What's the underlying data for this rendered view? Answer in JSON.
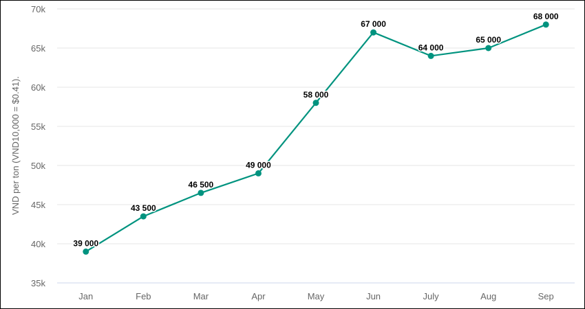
{
  "chart_data": {
    "type": "line",
    "title": "",
    "xlabel": "",
    "ylabel": "VND per ton (VND10,000 = $0.41).",
    "categories": [
      "Jan",
      "Feb",
      "Mar",
      "Apr",
      "May",
      "Jun",
      "July",
      "Aug",
      "Sep"
    ],
    "series": [
      {
        "values": [
          39000,
          43500,
          46500,
          49000,
          58000,
          67000,
          64000,
          65000,
          68000
        ],
        "data_labels": [
          "39 000",
          "43 500",
          "46 500",
          "49 000",
          "58 000",
          "67 000",
          "64 000",
          "65 000",
          "68 000"
        ],
        "color": "#00937f"
      }
    ],
    "ylim": [
      35000,
      70000
    ],
    "yticks": [
      35000,
      40000,
      45000,
      50000,
      55000,
      60000,
      65000,
      70000
    ],
    "ytick_labels": [
      "35k",
      "40k",
      "45k",
      "50k",
      "55k",
      "60k",
      "65k",
      "70k"
    ],
    "grid": true,
    "legend": "none"
  },
  "colors": {
    "line": "#00937f",
    "grid": "#e6e6e6",
    "axis": "#ccd6eb"
  }
}
